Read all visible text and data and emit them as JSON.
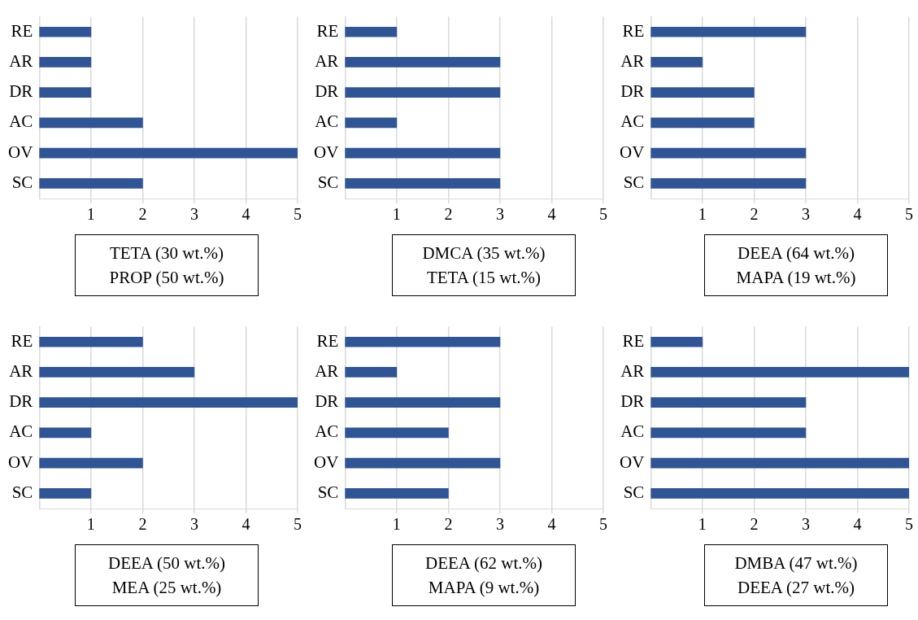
{
  "chart_data": [
    {
      "type": "bar",
      "orientation": "horizontal",
      "title": "TETA (30 wt.%)",
      "subtitle": "PROP (50 wt.%)",
      "categories": [
        "RE",
        "AR",
        "DR",
        "AC",
        "OV",
        "SC"
      ],
      "values": [
        1,
        1,
        1,
        2,
        5,
        2
      ],
      "color": "#2f5597",
      "xlim": [
        0,
        5
      ],
      "xticks": [
        1,
        2,
        3,
        4,
        5
      ],
      "grid": "x"
    },
    {
      "type": "bar",
      "orientation": "horizontal",
      "title": "DMCA (35 wt.%)",
      "subtitle": "TETA (15 wt.%)",
      "categories": [
        "RE",
        "AR",
        "DR",
        "AC",
        "OV",
        "SC"
      ],
      "values": [
        1,
        3,
        3,
        1,
        3,
        3
      ],
      "color": "#2f5597",
      "xlim": [
        0,
        5
      ],
      "xticks": [
        1,
        2,
        3,
        4,
        5
      ],
      "grid": "x"
    },
    {
      "type": "bar",
      "orientation": "horizontal",
      "title": "DEEA (64 wt.%)",
      "subtitle": "MAPA (19 wt.%)",
      "categories": [
        "RE",
        "AR",
        "DR",
        "AC",
        "OV",
        "SC"
      ],
      "values": [
        3,
        1,
        2,
        2,
        3,
        3
      ],
      "color": "#2f5597",
      "xlim": [
        0,
        5
      ],
      "xticks": [
        1,
        2,
        3,
        4,
        5
      ],
      "grid": "x"
    },
    {
      "type": "bar",
      "orientation": "horizontal",
      "title": "DEEA (50 wt.%)",
      "subtitle": "MEA (25 wt.%)",
      "categories": [
        "RE",
        "AR",
        "DR",
        "AC",
        "OV",
        "SC"
      ],
      "values": [
        2,
        3,
        5,
        1,
        2,
        1
      ],
      "color": "#2f5597",
      "xlim": [
        0,
        5
      ],
      "xticks": [
        1,
        2,
        3,
        4,
        5
      ],
      "grid": "x"
    },
    {
      "type": "bar",
      "orientation": "horizontal",
      "title": "DEEA (62 wt.%)",
      "subtitle": "MAPA (9 wt.%)",
      "categories": [
        "RE",
        "AR",
        "DR",
        "AC",
        "OV",
        "SC"
      ],
      "values": [
        3,
        1,
        3,
        2,
        3,
        2
      ],
      "color": "#2f5597",
      "xlim": [
        0,
        5
      ],
      "xticks": [
        1,
        2,
        3,
        4,
        5
      ],
      "grid": "x"
    },
    {
      "type": "bar",
      "orientation": "horizontal",
      "title": "DMBA (47 wt.%)",
      "subtitle": "DEEA (27 wt.%)",
      "categories": [
        "RE",
        "AR",
        "DR",
        "AC",
        "OV",
        "SC"
      ],
      "values": [
        1,
        5,
        3,
        3,
        5,
        5
      ],
      "color": "#2f5597",
      "xlim": [
        0,
        5
      ],
      "xticks": [
        1,
        2,
        3,
        4,
        5
      ],
      "grid": "x"
    }
  ]
}
